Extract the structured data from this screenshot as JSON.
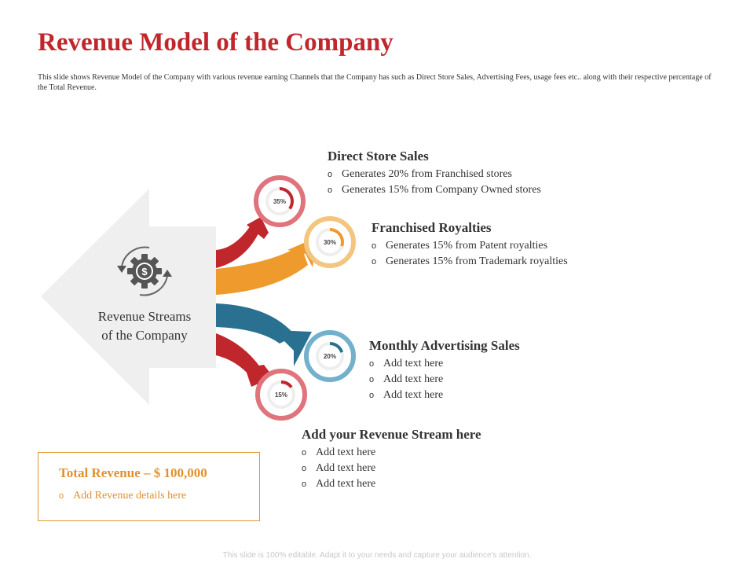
{
  "title": "Revenue Model of  the Company",
  "subtitle": "This slide shows Revenue Model of the Company with various revenue earning Channels that the Company has such as Direct Store Sales, Advertising Fees, usage fees etc.. along with their respective percentage of the Total Revenue.",
  "hub": {
    "label_line1": "Revenue Streams",
    "label_line2": "of the Company",
    "icon": "dollar-gear-cycle-icon"
  },
  "streams": [
    {
      "title": "Direct Store Sales",
      "percent_label": "35%",
      "percent": 35,
      "color": "#c0272d",
      "ring_color": "#e0747c",
      "bullets": [
        "Generates 20% from Franchised stores",
        "Generates 15% from Company Owned stores"
      ]
    },
    {
      "title": "Franchised Royalties",
      "percent_label": "30%",
      "percent": 30,
      "color": "#ef9a2c",
      "ring_color": "#f3c57e",
      "bullets": [
        "Generates 15% from Patent royalties",
        "Generates 15% from Trademark royalties"
      ]
    },
    {
      "title": "Monthly Advertising Sales",
      "percent_label": "20%",
      "percent": 20,
      "color": "#2a7191",
      "ring_color": "#72b0cc",
      "bullets": [
        "Add text here",
        "Add text here",
        "Add text here"
      ]
    },
    {
      "title": "Add your Revenue Stream here",
      "percent_label": "15%",
      "percent": 15,
      "color": "#c0272d",
      "ring_color": "#e0747c",
      "bullets": [
        "Add text here",
        "Add text here",
        "Add text here"
      ]
    }
  ],
  "bullet_symbol": "o",
  "total": {
    "title": "Total Revenue – $ 100,000",
    "detail": "Add Revenue details here"
  },
  "footer": "This slide is 100% editable. Adapt it to your needs and capture your audience's attention."
}
